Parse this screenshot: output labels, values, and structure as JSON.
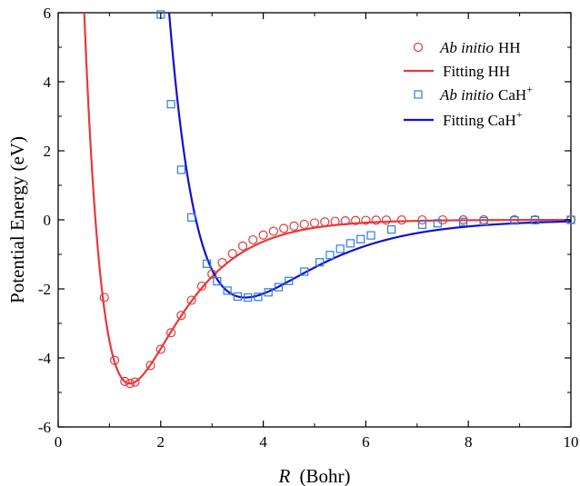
{
  "chart_data": {
    "type": "line",
    "title": "",
    "xlabel_italic": "R",
    "xlabel_rest": "(Bohr)",
    "ylabel": "Potential Energy (eV)",
    "xlim": [
      0,
      10
    ],
    "ylim": [
      -6,
      6
    ],
    "xticks": [
      0,
      2,
      4,
      6,
      8,
      10
    ],
    "yticks": [
      -6,
      -4,
      -2,
      0,
      2,
      4,
      6
    ],
    "grid": false,
    "legend_position": "top-right",
    "legend": [
      {
        "key": "hh_points",
        "italic": "Ab initio",
        "rest": "HH",
        "sup": "",
        "kind": "circle",
        "color": "#e8383b"
      },
      {
        "key": "hh_fit",
        "italic": "",
        "rest": "Fitting HH",
        "sup": "",
        "kind": "line",
        "color": "#e8383b"
      },
      {
        "key": "cah_points",
        "italic": "Ab initio",
        "rest": "CaH",
        "sup": "+",
        "kind": "square",
        "color": "#2a7de1"
      },
      {
        "key": "cah_fit",
        "italic": "",
        "rest": "Fitting CaH",
        "sup": "+",
        "kind": "line",
        "color": "#1010d0"
      }
    ],
    "series": [
      {
        "key": "hh_points",
        "marker": "circle",
        "color": "#e8383b",
        "x": [
          0.9,
          1.1,
          1.3,
          1.4,
          1.5,
          1.8,
          2.0,
          2.2,
          2.4,
          2.6,
          2.8,
          3.0,
          3.2,
          3.4,
          3.6,
          3.8,
          4.0,
          4.2,
          4.4,
          4.6,
          4.8,
          5.0,
          5.2,
          5.4,
          5.6,
          5.8,
          6.0,
          6.2,
          6.4,
          6.7,
          7.1,
          7.5,
          7.9,
          8.3,
          8.9,
          9.3,
          10.0
        ],
        "y": [
          -2.25,
          -4.07,
          -4.68,
          -4.74,
          -4.7,
          -4.22,
          -3.75,
          -3.27,
          -2.77,
          -2.33,
          -1.92,
          -1.57,
          -1.24,
          -0.98,
          -0.76,
          -0.58,
          -0.44,
          -0.33,
          -0.25,
          -0.18,
          -0.13,
          -0.09,
          -0.06,
          -0.045,
          -0.03,
          -0.02,
          -0.015,
          -0.01,
          -0.007,
          -0.004,
          -0.002,
          -0.001,
          0.0,
          0.0,
          0.0,
          0.0,
          0.0
        ]
      },
      {
        "key": "cah_points",
        "marker": "square",
        "color": "#2a7de1",
        "x": [
          2.0,
          2.2,
          2.4,
          2.6,
          2.9,
          3.1,
          3.3,
          3.5,
          3.7,
          3.9,
          4.1,
          4.3,
          4.5,
          4.8,
          5.1,
          5.3,
          5.5,
          5.7,
          5.9,
          6.1,
          6.5,
          7.1,
          7.4,
          7.9,
          8.3,
          8.9,
          9.3,
          10.0
        ],
        "y": [
          5.95,
          3.35,
          1.45,
          0.07,
          -1.27,
          -1.78,
          -2.05,
          -2.22,
          -2.25,
          -2.23,
          -2.1,
          -1.95,
          -1.77,
          -1.5,
          -1.23,
          -1.02,
          -0.84,
          -0.68,
          -0.56,
          -0.45,
          -0.28,
          -0.14,
          -0.1,
          -0.06,
          -0.04,
          -0.02,
          -0.01,
          0.0
        ]
      }
    ],
    "fits": {
      "hh_fit": {
        "model": "morse",
        "De": 4.74,
        "a": 1.03,
        "re": 1.4,
        "color": "#e8383b"
      },
      "cah_fit": {
        "model": "morse",
        "De": 2.25,
        "a": 0.72,
        "re": 3.65,
        "color": "#1010d0"
      }
    }
  }
}
